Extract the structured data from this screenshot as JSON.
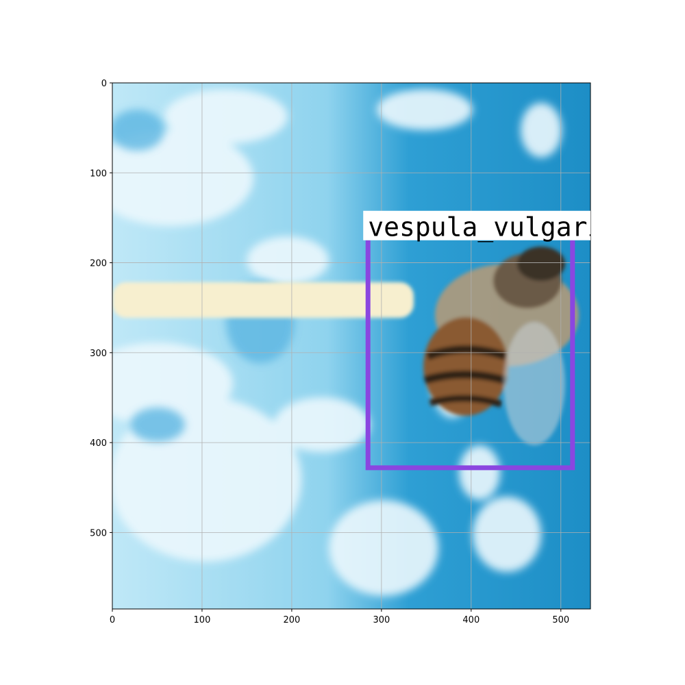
{
  "detection": {
    "label": "vespula_vulgaris",
    "box_color": "#8a46e0",
    "box": {
      "x0": 285,
      "y0": 175,
      "x1": 513,
      "y1": 428
    }
  },
  "axes": {
    "xlim": [
      0,
      533
    ],
    "ylim": [
      585,
      0
    ],
    "x_ticks": [
      0,
      100,
      200,
      300,
      400,
      500
    ],
    "y_ticks": [
      0,
      100,
      200,
      300,
      400,
      500
    ],
    "grid": true
  },
  "scene": {
    "background_color": "#3aa3d6",
    "highlight_color": "#e6f6fc",
    "stick_color": "#f5ecc8",
    "bee_body_color": "#8a5a33"
  }
}
